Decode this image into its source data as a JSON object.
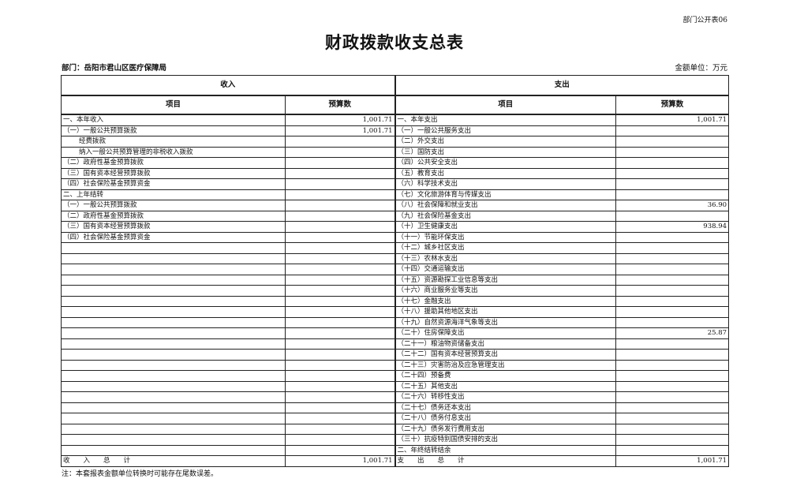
{
  "form_no": "部门公开表06",
  "title": "财政拨款收支总表",
  "department": "部门：岳阳市君山区医疗保障局",
  "unit": "金额单位：万元",
  "headers": {
    "income": "收入",
    "expense": "支出",
    "item": "项目",
    "budget": "预算数"
  },
  "income_rows": [
    {
      "label": "一、本年收入",
      "value": "1,001.71",
      "indent": false
    },
    {
      "label": "（一）一般公共预算拨款",
      "value": "1,001.71",
      "indent": false
    },
    {
      "label": "经费拨款",
      "value": "",
      "indent": true
    },
    {
      "label": "纳入一般公共预算管理的非税收入拨款",
      "value": "",
      "indent": true
    },
    {
      "label": "（二）政府性基金预算拨款",
      "value": "",
      "indent": false
    },
    {
      "label": "（三）国有资本经营预算拨款",
      "value": "",
      "indent": false
    },
    {
      "label": "（四）社会保险基金预算资金",
      "value": "",
      "indent": false
    },
    {
      "label": "二、上年结转",
      "value": "",
      "indent": false
    },
    {
      "label": "（一）一般公共预算拨款",
      "value": "",
      "indent": false
    },
    {
      "label": "（二）政府性基金预算拨款",
      "value": "",
      "indent": false
    },
    {
      "label": "（三）国有资本经营预算拨款",
      "value": "",
      "indent": false
    },
    {
      "label": "（四）社会保险基金预算资金",
      "value": "",
      "indent": false
    }
  ],
  "expense_rows": [
    {
      "label": "一、本年支出",
      "value": "1,001.71"
    },
    {
      "label": "（一）一般公共服务支出",
      "value": ""
    },
    {
      "label": "（二）外交支出",
      "value": ""
    },
    {
      "label": "（三）国防支出",
      "value": ""
    },
    {
      "label": "（四）公共安全支出",
      "value": ""
    },
    {
      "label": "（五）教育支出",
      "value": ""
    },
    {
      "label": "（六）科学技术支出",
      "value": ""
    },
    {
      "label": "（七）文化旅游体育与传媒支出",
      "value": ""
    },
    {
      "label": "（八）社会保障和就业支出",
      "value": "36.90"
    },
    {
      "label": "（九）社会保险基金支出",
      "value": ""
    },
    {
      "label": "（十）卫生健康支出",
      "value": "938.94"
    },
    {
      "label": "（十一）节能环保支出",
      "value": ""
    },
    {
      "label": "（十二）城乡社区支出",
      "value": ""
    },
    {
      "label": "（十三）农林水支出",
      "value": ""
    },
    {
      "label": "（十四）交通运输支出",
      "value": ""
    },
    {
      "label": "（十五）资源勘探工业信息等支出",
      "value": ""
    },
    {
      "label": "（十六）商业服务业等支出",
      "value": ""
    },
    {
      "label": "（十七）金融支出",
      "value": ""
    },
    {
      "label": "（十八）援助其他地区支出",
      "value": ""
    },
    {
      "label": "（十九）自然资源海洋气象等支出",
      "value": ""
    },
    {
      "label": "（二十）住房保障支出",
      "value": "25.87"
    },
    {
      "label": "（二十一）粮油物资储备支出",
      "value": ""
    },
    {
      "label": "（二十二）国有资本经营预算支出",
      "value": ""
    },
    {
      "label": "（二十三）灾害防治及应急管理支出",
      "value": ""
    },
    {
      "label": "（二十四）预备费",
      "value": ""
    },
    {
      "label": "（二十五）其他支出",
      "value": ""
    },
    {
      "label": "（二十六）转移性支出",
      "value": ""
    },
    {
      "label": "（二十七）债务还本支出",
      "value": ""
    },
    {
      "label": "（二十八）债务付息支出",
      "value": ""
    },
    {
      "label": "（二十九）债务发行费用支出",
      "value": ""
    },
    {
      "label": "（三十）抗疫特别国债安排的支出",
      "value": ""
    },
    {
      "label": "二、年终结转结余",
      "value": ""
    }
  ],
  "totals": {
    "income_label": "收　　入　　总　　计",
    "income_value": "1,001.71",
    "expense_label": "支　　出　　总　　计",
    "expense_value": "1,001.71"
  },
  "note": "注：本套报表金额单位转换时可能存在尾数误差。"
}
